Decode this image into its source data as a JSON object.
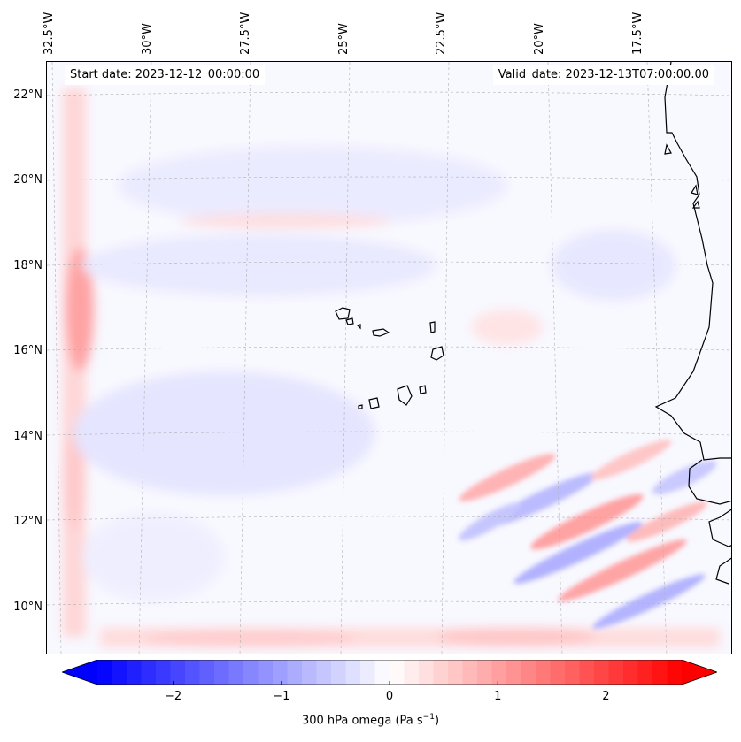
{
  "map": {
    "start_label": "Start date: 2023-12-12_00:00:00",
    "valid_label": "Valid_date: 2023-12-13T07:00:00.00",
    "lon_ticks": [
      {
        "value": -32.5,
        "label": "32.5°W"
      },
      {
        "value": -30,
        "label": "30°W"
      },
      {
        "value": -27.5,
        "label": "27.5°W"
      },
      {
        "value": -25,
        "label": "25°W"
      },
      {
        "value": -22.5,
        "label": "22.5°W"
      },
      {
        "value": -20,
        "label": "20°W"
      },
      {
        "value": -17.5,
        "label": "17.5°W"
      }
    ],
    "lat_ticks": [
      {
        "value": 22,
        "label": "22°N"
      },
      {
        "value": 20,
        "label": "20°N"
      },
      {
        "value": 18,
        "label": "18°N"
      },
      {
        "value": 16,
        "label": "16°N"
      },
      {
        "value": 14,
        "label": "14°N"
      },
      {
        "value": 12,
        "label": "12°N"
      },
      {
        "value": 10,
        "label": "10°N"
      }
    ],
    "lon_range": [
      -32.6,
      -15.1
    ],
    "lat_range": [
      8.9,
      22.8
    ],
    "gridlines": true
  },
  "colorbar": {
    "label": "300 hPa omega (Pa s",
    "label_sup": "−1",
    "label_end": ")",
    "range": [
      -2.7,
      2.7
    ],
    "extend": "both",
    "ticks": [
      {
        "value": -2,
        "label": "−2"
      },
      {
        "value": -1,
        "label": "−1"
      },
      {
        "value": 0,
        "label": "0"
      },
      {
        "value": 1,
        "label": "1"
      },
      {
        "value": 2,
        "label": "2"
      }
    ],
    "colormap": "bwr",
    "color_min": "#0000ff",
    "color_mid": "#ffffff",
    "color_max": "#ff0000"
  }
}
